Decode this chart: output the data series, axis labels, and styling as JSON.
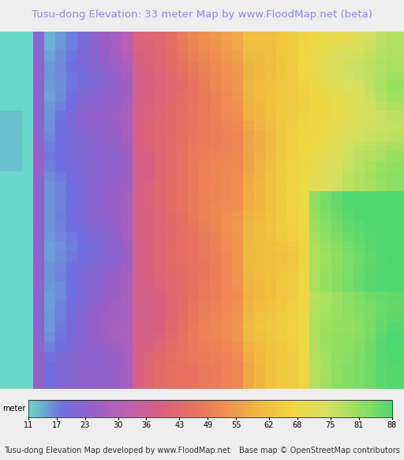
{
  "title": "Tusu-dong Elevation: 33 meter Map by www.FloodMap.net (beta)",
  "title_color": "#8888ff",
  "title_fontsize": 9.5,
  "colorbar_values": [
    11,
    17,
    23,
    30,
    36,
    43,
    49,
    55,
    62,
    68,
    75,
    81,
    88
  ],
  "colorbar_colors": [
    "#68d8c8",
    "#7070e0",
    "#9960c8",
    "#c060b0",
    "#d86080",
    "#e87060",
    "#f09050",
    "#f0b840",
    "#f0d840",
    "#d8e060",
    "#98e060",
    "#50d870"
  ],
  "footer_left": "Tusu-dong Elevation Map developed by www.FloodMap.net",
  "footer_right": "Base map © OpenStreetMap contributors",
  "footer_fontsize": 7,
  "background_color": "#eeeeee",
  "fig_width": 5.12,
  "fig_height": 5.82,
  "dpi": 100
}
